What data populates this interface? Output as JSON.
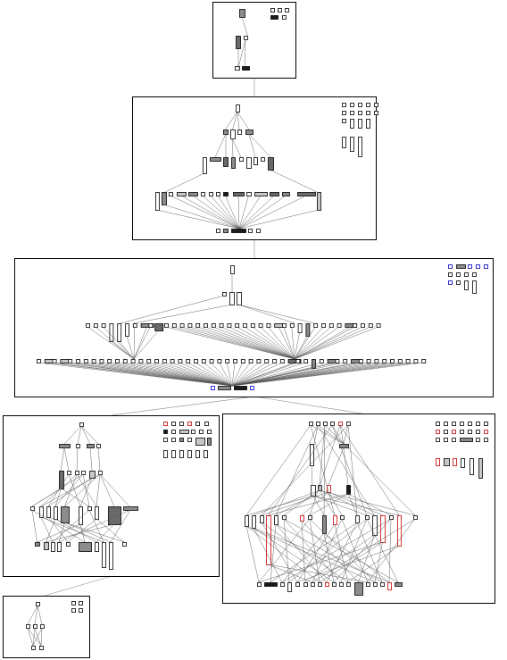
{
  "diagram": {
    "type": "hierarchical-graph-overview",
    "panel_count": 6,
    "legend_colors": {
      "white": "#ffffff",
      "light": "#c8c8c8",
      "medium": "#8c8c8c",
      "dark": "#6a6a6a",
      "black": "#1a1a1a",
      "highlight_red": "#cc0000",
      "highlight_blue": "#0000cc"
    }
  }
}
